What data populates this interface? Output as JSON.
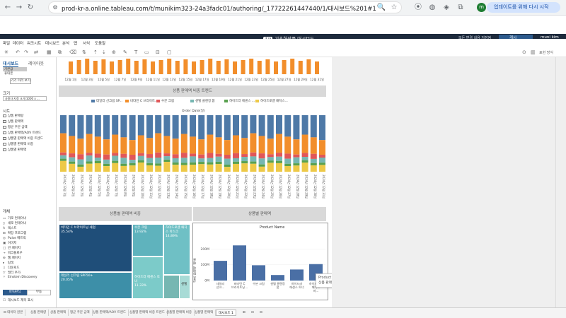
{
  "browser": {
    "url": "prod-kr-a.online.tableau.com/t/munikim323-24a3fadc01/authoring/_17722261447440/1/대시보드%201#1",
    "update_label": "업데이트를 위해 다시 시작",
    "avatar_letter": "m"
  },
  "tableau": {
    "draft_badge": "초안",
    "title": "기초화장품 대시보드",
    "saved_status": "모든 변경 내용 저장됨",
    "publish_label": "게시",
    "user_name": "muni kim",
    "menu": [
      "파일",
      "데이터",
      "워크시트",
      "대시보드",
      "분석",
      "맵",
      "서식",
      "도움말"
    ],
    "toolbar_right": "표현 방식"
  },
  "left_panel": {
    "tab_dashboard": "대시보드",
    "tab_layout": "레이아웃",
    "device_default": "기본값",
    "device_phone": "휴대폰",
    "device_preview_btn": "기기 미리 보기",
    "size_label": "크기",
    "size_value": "사용자 지정 크기(1000 x ...",
    "sheets_label": "시트",
    "sheets": [
      "상품 판매량",
      "상품 판매액",
      "평균 주문 금액",
      "상품 판매액/AOV 트렌드",
      "상품별 판매액 비중 트렌드",
      "상품별 판매액 비중",
      "상품별 판매액"
    ],
    "objects_label": "개체",
    "objects": [
      "가로 컨테이너",
      "세로 컨테이너",
      "텍스트",
      "확장 프로그램",
      "Pulse 메트릭",
      "이미지",
      "빈 페이지",
      "워크플로우",
      "웹 페이지",
      "탐색",
      "다운로드",
      "필터 추가",
      "Einstein Discovery"
    ],
    "tiled_label": "바둑판식",
    "floating_label": "부동",
    "show_title_label": "대시보드 제목 표시"
  },
  "canvas": {
    "top_dates": [
      "12월 1일",
      "12월 3일",
      "12월 5일",
      "12월 7일",
      "12월 9일",
      "12월 11일",
      "12월 13일",
      "12월 15일",
      "12월 17일",
      "12월 19일",
      "12월 21일",
      "12월 23일",
      "12월 25일",
      "12월 27일",
      "12월 29일",
      "12월 31일"
    ],
    "trend_section_title": "상품 판매액 비중 트렌드",
    "stacked_axis_label": "Order Date(일)",
    "legend": [
      {
        "label": "데일리 선크림 SP...",
        "color": "#4e79a7"
      },
      {
        "label": "비타민 C 브라이트...",
        "color": "#f28e2b"
      },
      {
        "label": "수분 크림",
        "color": "#e15759"
      },
      {
        "label": "센텔 클렌징 폼",
        "color": "#76b7b2"
      },
      {
        "label": "하이드라 에센스 ...",
        "color": "#59a14f"
      },
      {
        "label": "하이드로겔 패치스...",
        "color": "#edc948"
      }
    ],
    "share_section_title": "상품별 판매액 비중",
    "sales_section_title": "상품별 판매액",
    "treemap": [
      {
        "label": "비타민 C 브라이트닝 세럼",
        "value": "35.54%",
        "color": "#1f4e79"
      },
      {
        "label": "데일리 선크림 SPF50+",
        "value": "20.05%",
        "color": "#3d8fa8"
      },
      {
        "label": "수분 크림",
        "value": "13.92%",
        "color": "#5fb3bd"
      },
      {
        "label": "하이드로겔 패치스 마스크",
        "value": "14.89%",
        "color": "#6fc0c5"
      },
      {
        "label": "하이드라 에센스 토너",
        "value": "11.33%",
        "color": "#7ccbc9"
      },
      {
        "label": "센텔",
        "value": "",
        "color": "#a8dbd6"
      }
    ],
    "bar_title": "Product Name",
    "bar_ylabel": "상품 판매액 매출",
    "bar_yticks": [
      "200M",
      "100M",
      "0M"
    ]
  },
  "tooltip": {
    "name_label": "Product Name:",
    "name_value": "하이드로겔 패치스 마스크",
    "sales_label": "상품 판매액 매출:",
    "sales_value": "104,346,000"
  },
  "bottom_tabs": [
    "데이터 원본",
    "상품 판매량",
    "상품 판매액",
    "평균 주문 금액",
    "상품 판매액/AOV 트렌드",
    "상품별 판매액 비중 트렌드",
    "상품별 판매액 비중",
    "상품별 판매액",
    "대시보드 1"
  ],
  "chart_data": [
    {
      "type": "bar",
      "title": "상품별 판매액",
      "ylabel": "상품 판매액 매출",
      "categories": [
        "데일리 선크...",
        "비타민 C 브라이트닝...",
        "수분 크림",
        "센텔 클렌징 폼",
        "하이드라 에센스 토너",
        "하이드로겔 패치스 마..."
      ],
      "values": [
        125000000,
        223000000,
        97000000,
        35000000,
        70000000,
        104346000
      ],
      "ylim": [
        0,
        260000000
      ],
      "ytick_values": [
        200000000,
        100000000,
        0
      ],
      "color": "#4a6fa5"
    },
    {
      "type": "bar",
      "title": "상품 판매액 비중 트렌드",
      "xlabel": "Order Date(일)",
      "stacked": true,
      "normalized": true,
      "day_count": 31,
      "series_colors": [
        "#4e79a7",
        "#f28e2b",
        "#e15759",
        "#76b7b2",
        "#59a14f",
        "#edc948"
      ]
    }
  ]
}
